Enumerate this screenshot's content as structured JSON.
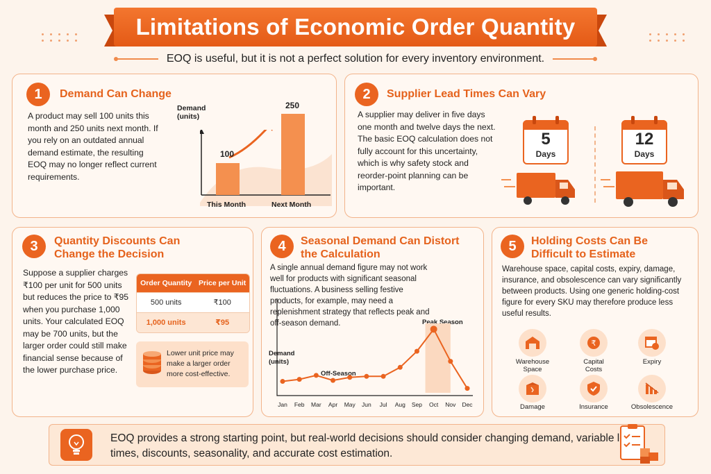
{
  "title": "Limitations of Economic Order Quantity",
  "subtitle": "EOQ is useful, but it is not a perfect solution for every inventory environment.",
  "sections": [
    {
      "number": "1",
      "title": "Demand Can Change",
      "text": "A product may sell 100 units this month and 250 units next month. If you rely on an outdated annual demand estimate, the resulting EOQ may no longer reflect current requirements.",
      "chart": {
        "ylabel": "Demand (units)",
        "categories": [
          "This Month",
          "Next Month"
        ],
        "values": [
          100,
          250
        ]
      }
    },
    {
      "number": "2",
      "title": "Supplier Lead Times Can Vary",
      "text": "A supplier may deliver in five days one month and twelve days the next. The basic EOQ calculation does not fully account for this uncertainty, which is why safety stock and reorder-point planning can be important.",
      "calendars": [
        {
          "value": "5",
          "unit": "Days"
        },
        {
          "value": "12",
          "unit": "Days"
        }
      ]
    },
    {
      "number": "3",
      "title": "Quantity Discounts Can Change the Decision",
      "text": "Suppose a supplier charges ₹100 per unit for 500 units but reduces the price to ₹95 when you purchase 1,000 units. Your calculated EOQ may be 700 units, but the larger order could still make financial sense because of the lower purchase price.",
      "table": {
        "headers": [
          "Order Quantity",
          "Price per Unit"
        ],
        "rows": [
          [
            "500 units",
            "₹100"
          ],
          [
            "1,000 units",
            "₹95"
          ]
        ]
      },
      "note": "Lower unit price may make a larger order more cost-effective."
    },
    {
      "number": "4",
      "title": "Seasonal Demand Can Distort the Calculation",
      "text": "A single annual demand figure may not work well for products with significant seasonal fluctuations. A business selling festive products, for example, may need a replenishment strategy that reflects peak and off-season demand.",
      "chart": {
        "ylabel": "Demand (units)",
        "peak_label": "Peak Season",
        "off_label": "Off-Season",
        "months": [
          "Jan",
          "Feb",
          "Mar",
          "Apr",
          "May",
          "Jun",
          "Jul",
          "Aug",
          "Sep",
          "Oct",
          "Nov",
          "Dec"
        ],
        "values": [
          10,
          12,
          16,
          11,
          14,
          15,
          15,
          24,
          40,
          62,
          30,
          3
        ]
      }
    },
    {
      "number": "5",
      "title": "Holding Costs Can Be Difficult to Estimate",
      "text": "Warehouse space, capital costs, expiry, damage, insurance, and obsolescence can vary significantly between products. Using one generic holding-cost figure for every SKU may therefore produce less useful results.",
      "icons": [
        {
          "icon": "warehouse-icon",
          "label1": "Warehouse",
          "label2": "Space"
        },
        {
          "icon": "coins-icon",
          "label1": "Capital",
          "label2": "Costs"
        },
        {
          "icon": "calendar-clock-icon",
          "label1": "Expiry",
          "label2": ""
        },
        {
          "icon": "broken-box-icon",
          "label1": "Damage",
          "label2": ""
        },
        {
          "icon": "shield-icon",
          "label1": "Insurance",
          "label2": ""
        },
        {
          "icon": "declining-chart-icon",
          "label1": "Obsolescence",
          "label2": ""
        }
      ]
    }
  ],
  "footer": "EOQ provides a strong starting point, but real-world decisions should consider changing demand, variable lead times, discounts, seasonality, and accurate cost estimation.",
  "colors": {
    "accent": "#ea6420",
    "light": "#fde0ca",
    "bg": "#fdf4ec"
  }
}
